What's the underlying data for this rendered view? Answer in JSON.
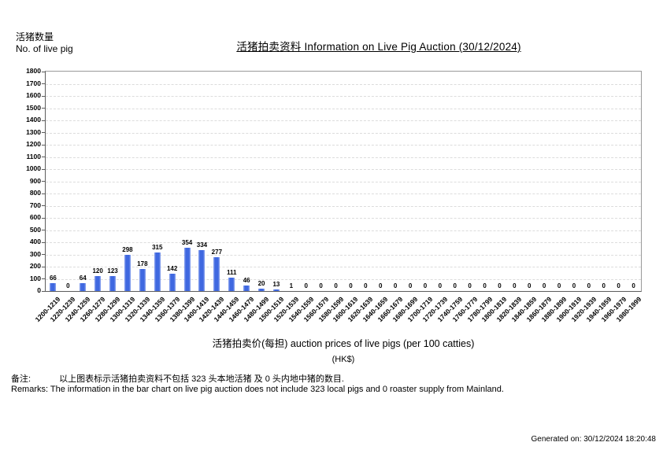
{
  "header": {
    "ylabel_zh": "活猪数量",
    "ylabel_en": "No. of live pig",
    "title": "活猪拍卖资料 Information on Live Pig Auction (30/12/2024)"
  },
  "footer": {
    "xlabel": "活猪拍卖价(每担) auction prices of live pigs (per 100 catties)",
    "x_unit": "(HK$)",
    "remark_zh_label": "备注:",
    "remark_zh_text": "以上图表标示活猪拍卖资料不包括 323 头本地活猪 及 0 头内地中猪的数目.",
    "remark_en_text": "Remarks: The information in the bar chart on live pig auction does not include 323 local pigs and 0 roaster supply from Mainland.",
    "generated_on": "Generated on: 30/12/2024 18:20:48"
  },
  "chart_data": {
    "type": "bar",
    "title": "活猪拍卖资料 Information on Live Pig Auction (30/12/2024)",
    "xlabel": "活猪拍卖价(每担) auction prices of live pigs (per 100 catties) (HK$)",
    "ylabel": "活猪数量 No. of live pig",
    "ylim": [
      0,
      1800
    ],
    "ytick_step": 100,
    "grid": true,
    "grid_style": "dashed",
    "legend": "none",
    "data_labels": true,
    "bar_color": "#4169e1",
    "categories": [
      "1200-1219",
      "1220-1239",
      "1240-1259",
      "1260-1279",
      "1280-1299",
      "1300-1319",
      "1320-1339",
      "1340-1359",
      "1360-1379",
      "1380-1399",
      "1400-1419",
      "1420-1439",
      "1440-1459",
      "1460-1479",
      "1480-1499",
      "1500-1519",
      "1520-1539",
      "1540-1559",
      "1560-1579",
      "1580-1599",
      "1600-1619",
      "1620-1639",
      "1640-1659",
      "1660-1679",
      "1680-1699",
      "1700-1719",
      "1720-1739",
      "1740-1759",
      "1760-1779",
      "1780-1799",
      "1800-1819",
      "1820-1839",
      "1840-1859",
      "1860-1879",
      "1880-1899",
      "1900-1919",
      "1920-1939",
      "1940-1959",
      "1960-1979",
      "1980-1999"
    ],
    "values": [
      66,
      0,
      64,
      120,
      123,
      298,
      178,
      315,
      142,
      354,
      334,
      277,
      111,
      46,
      20,
      13,
      1,
      0,
      0,
      0,
      0,
      0,
      0,
      0,
      0,
      0,
      0,
      0,
      0,
      0,
      0,
      0,
      0,
      0,
      0,
      0,
      0,
      0,
      0,
      0
    ]
  }
}
